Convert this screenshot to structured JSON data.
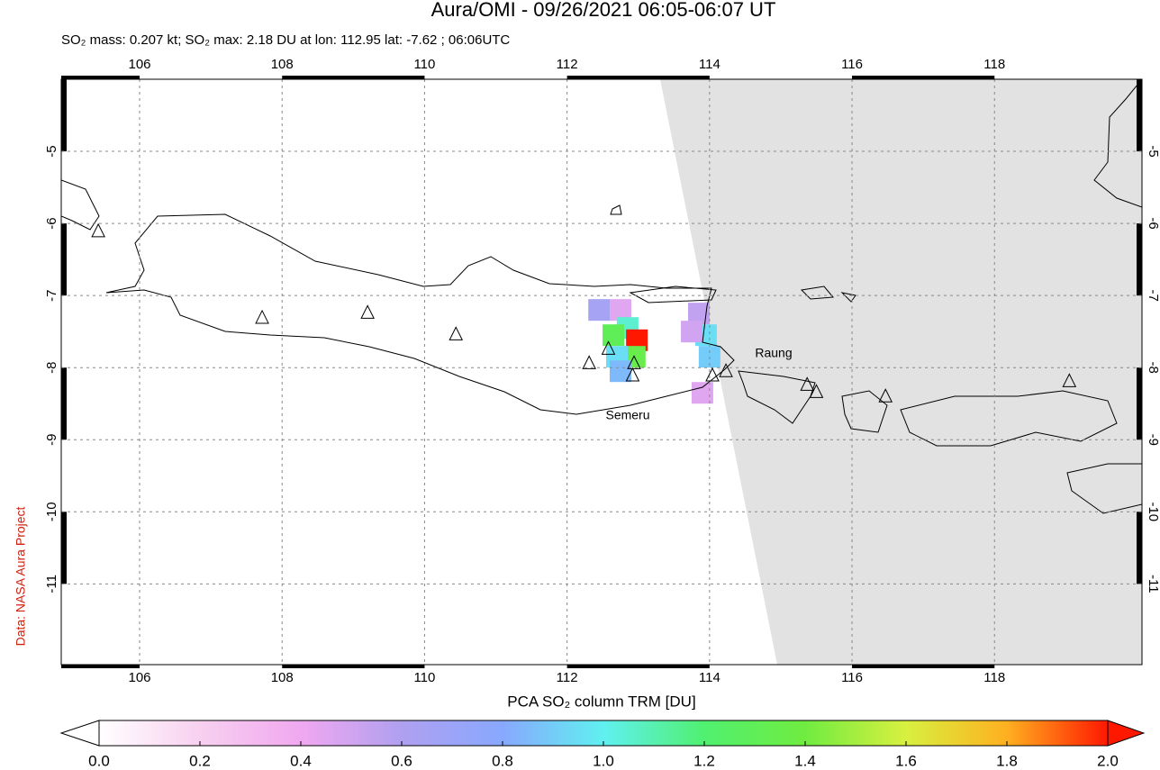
{
  "chart_data": {
    "type": "map",
    "title": "Aura/OMI - 09/26/2021 06:05-06:07 UT",
    "subtitle": "SO₂ mass: 0.207 kt; SO₂ max: 2.18 DU at lon: 112.95 lat: -7.62 ; 06:06UTC",
    "credit": "Data: NASA Aura Project",
    "xlim": [
      104.9,
      120.07
    ],
    "ylim": [
      -12.12,
      -4.0
    ],
    "xticks": [
      106,
      108,
      110,
      112,
      114,
      116,
      118
    ],
    "yticks": [
      -5,
      -6,
      -7,
      -8,
      -9,
      -10,
      -11
    ],
    "grid": true,
    "annotations": [
      "Semeru",
      "Raung"
    ],
    "volcanoes": {
      "lon": [
        105.42,
        107.72,
        109.2,
        110.44,
        112.31,
        112.58,
        112.94,
        112.92,
        114.04,
        114.23,
        115.37,
        115.5,
        116.47,
        119.05
      ],
      "lat": [
        -6.11,
        -7.31,
        -7.24,
        -7.54,
        -7.94,
        -7.74,
        -7.94,
        -8.11,
        -8.11,
        -8.05,
        -8.24,
        -8.34,
        -8.4,
        -8.19
      ]
    },
    "pixels": {
      "lon": [
        112.45,
        112.75,
        112.85,
        112.65,
        112.98,
        112.95,
        112.7,
        112.75,
        113.85,
        113.95,
        114.0,
        113.75,
        113.9
      ],
      "lat": [
        -7.2,
        -7.2,
        -7.45,
        -7.55,
        -7.62,
        -7.85,
        -7.85,
        -8.05,
        -7.25,
        -7.55,
        -7.85,
        -7.5,
        -8.35
      ],
      "values": [
        0.65,
        0.45,
        1.05,
        1.3,
        2.18,
        1.35,
        0.95,
        0.85,
        0.55,
        0.95,
        0.9,
        0.5,
        0.45
      ]
    },
    "colorbar": {
      "label": "PCA SO₂ column TRM [DU]",
      "lim": [
        0,
        2
      ],
      "ticks": [
        {
          "value": 0,
          "label": "0.0"
        },
        {
          "value": 0.2,
          "label": "0.2"
        },
        {
          "value": 0.4,
          "label": "0.4"
        },
        {
          "value": 0.6,
          "label": "0.6"
        },
        {
          "value": 0.8,
          "label": "0.8"
        },
        {
          "value": 1.0,
          "label": "1.0"
        },
        {
          "value": 1.2,
          "label": "1.2"
        },
        {
          "value": 1.4,
          "label": "1.4"
        },
        {
          "value": 1.6,
          "label": "1.6"
        },
        {
          "value": 1.8,
          "label": "1.8"
        },
        {
          "value": 2.0,
          "label": "2.0"
        }
      ],
      "colors": [
        "#ffffff",
        "#f8d0f0",
        "#f0a8f0",
        "#b0a0f0",
        "#88a8ff",
        "#60f0f0",
        "#50f070",
        "#70ec40",
        "#d8f040",
        "#ffb020",
        "#ff1800"
      ]
    }
  }
}
